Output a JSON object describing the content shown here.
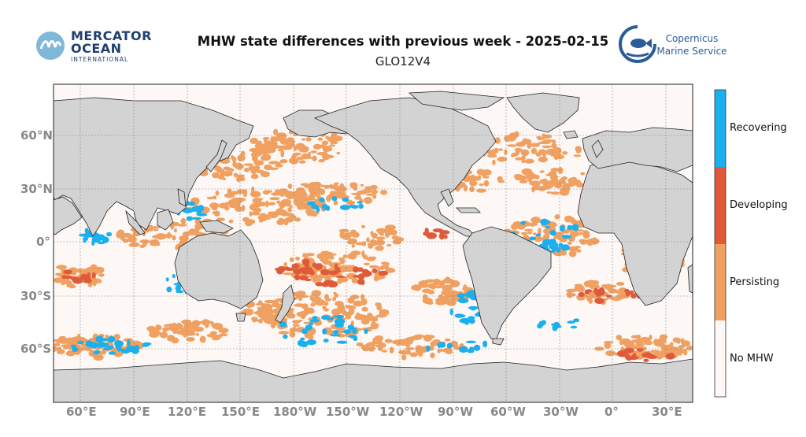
{
  "header": {
    "title": "MHW state differences with previous week - 2025-02-15",
    "subtitle": "GLO12V4"
  },
  "logos": {
    "mercator_line1": "MERCATOR",
    "mercator_line2": "OCEAN",
    "mercator_line3": "INTERNATIONAL",
    "copernicus_line1": "Copernicus",
    "copernicus_line2": "Marine Service"
  },
  "map": {
    "lat_ticks": [
      "60°N",
      "30°N",
      "0°",
      "30°S",
      "60°S"
    ],
    "lon_ticks": [
      "60°E",
      "90°E",
      "120°E",
      "150°E",
      "180°W",
      "150°W",
      "120°W",
      "90°W",
      "60°W",
      "30°W",
      "0°",
      "30°E"
    ]
  },
  "legend": {
    "categories": [
      "Recovering",
      "Developing",
      "Persisting",
      "No MHW"
    ]
  },
  "colors": {
    "recovering": "#1ab0f0",
    "developing": "#e05a3a",
    "persisting": "#f0a060",
    "no_mhw": "#fdf8f6",
    "land": "#d3d3d3",
    "mercator": "#1f3f6e",
    "copernicus": "#2a5c9a"
  }
}
